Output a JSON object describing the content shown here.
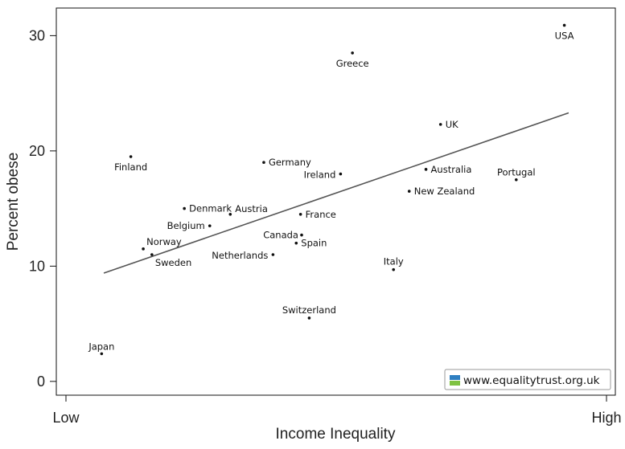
{
  "chart_data": {
    "type": "scatter",
    "xlabel": "Income Inequality",
    "ylabel": "Percent obese",
    "x_tick_labels": [
      "Low",
      "High"
    ],
    "y_ticks": [
      0,
      10,
      20,
      30
    ],
    "xlim": [
      0,
      1
    ],
    "ylim": [
      -0.5,
      31.7
    ],
    "trendline": {
      "x": [
        0.07,
        0.93
      ],
      "y": [
        9.4,
        23.3
      ]
    },
    "points": [
      {
        "label": "USA",
        "x": 0.922,
        "y": 30.9
      },
      {
        "label": "Greece",
        "x": 0.53,
        "y": 28.5
      },
      {
        "label": "UK",
        "x": 0.693,
        "y": 22.3
      },
      {
        "label": "Finland",
        "x": 0.12,
        "y": 19.5
      },
      {
        "label": "Germany",
        "x": 0.366,
        "y": 19.0
      },
      {
        "label": "Ireland",
        "x": 0.508,
        "y": 18.0
      },
      {
        "label": "Australia",
        "x": 0.666,
        "y": 18.4
      },
      {
        "label": "Portugal",
        "x": 0.833,
        "y": 17.5
      },
      {
        "label": "New Zealand",
        "x": 0.635,
        "y": 16.5
      },
      {
        "label": "Denmark",
        "x": 0.219,
        "y": 15.0
      },
      {
        "label": "Austria",
        "x": 0.304,
        "y": 14.5
      },
      {
        "label": "France",
        "x": 0.434,
        "y": 14.5
      },
      {
        "label": "Belgium",
        "x": 0.266,
        "y": 13.5
      },
      {
        "label": "Canada",
        "x": 0.436,
        "y": 12.7
      },
      {
        "label": "Spain",
        "x": 0.426,
        "y": 12.0
      },
      {
        "label": "Norway",
        "x": 0.143,
        "y": 11.5
      },
      {
        "label": "Sweden",
        "x": 0.159,
        "y": 11.0
      },
      {
        "label": "Netherlands",
        "x": 0.383,
        "y": 11.0
      },
      {
        "label": "Italy",
        "x": 0.606,
        "y": 9.7
      },
      {
        "label": "Switzerland",
        "x": 0.45,
        "y": 5.5
      },
      {
        "label": "Japan",
        "x": 0.066,
        "y": 2.4
      }
    ]
  },
  "watermark": {
    "text": "www.equalitytrust.org.uk"
  },
  "colors": {
    "frame": "#111111",
    "point": "#111111",
    "trendline": "#555555",
    "logo_blue": "#2f7fc1",
    "logo_green": "#7fc241"
  }
}
